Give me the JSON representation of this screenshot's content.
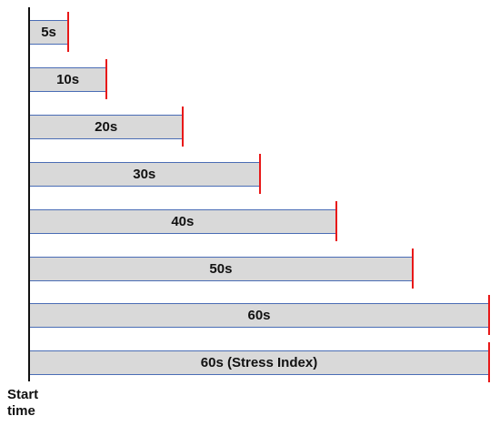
{
  "diagram": {
    "start_label_line1": "Start",
    "start_label_line2": "time",
    "bars": [
      {
        "label": "5s",
        "duration_s": 5
      },
      {
        "label": "10s",
        "duration_s": 10
      },
      {
        "label": "20s",
        "duration_s": 20
      },
      {
        "label": "30s",
        "duration_s": 30
      },
      {
        "label": "40s",
        "duration_s": 40
      },
      {
        "label": "50s",
        "duration_s": 50
      },
      {
        "label": "60s",
        "duration_s": 60
      },
      {
        "label": "60s (Stress Index)",
        "duration_s": 60
      }
    ],
    "colors": {
      "bar_fill": "#d9d9d9",
      "bar_border": "#4a6db5",
      "end_marker": "#e81818",
      "axis": "#111111"
    }
  }
}
